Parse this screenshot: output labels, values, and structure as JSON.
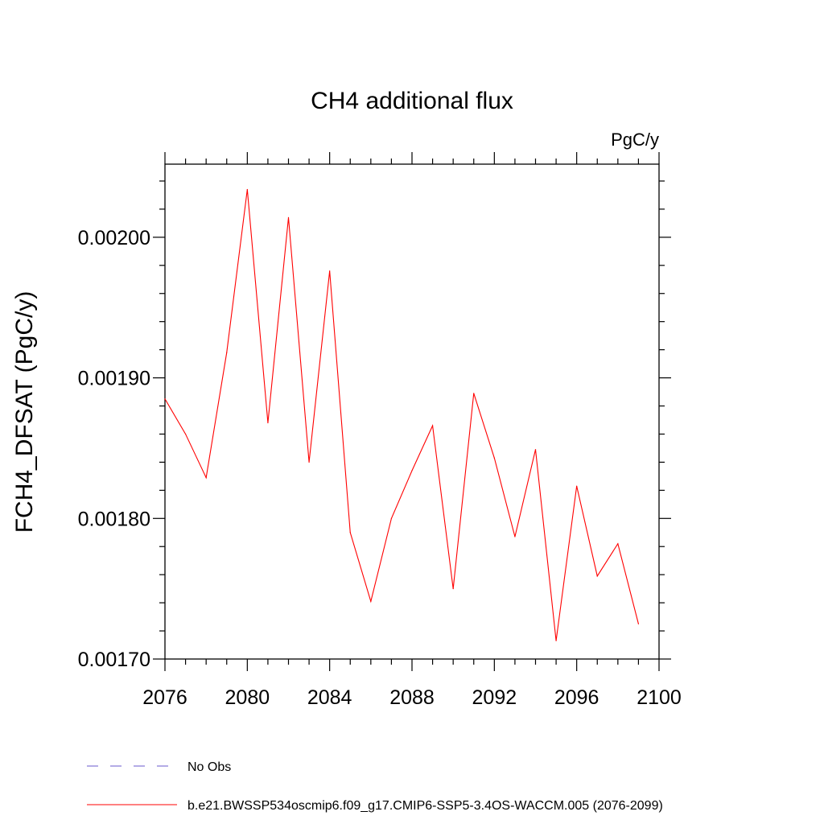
{
  "chart_data": {
    "type": "line",
    "title": "CH4 additional flux",
    "units_label": "PgC/y",
    "ylabel": "FCH4_DFSAT  (PgC/y)",
    "xlabel": "",
    "xlim": [
      2076,
      2100
    ],
    "ylim": [
      0.0017,
      0.002052
    ],
    "x_ticks": [
      "2076",
      "2080",
      "2084",
      "2088",
      "2092",
      "2096",
      "2100"
    ],
    "y_ticks": [
      "0.00170",
      "0.00180",
      "0.00190",
      "0.00200"
    ],
    "grid": false,
    "legend_position": "bottom-left",
    "series": [
      {
        "name": "b.e21.BWSSP534oscmip6.f09_g17.CMIP6-SSP5-3.4OS-WACCM.005 (2076-2099)",
        "color": "#ff0000",
        "x": [
          2076,
          2077,
          2078,
          2079,
          2080,
          2081,
          2082,
          2083,
          2084,
          2085,
          2086,
          2087,
          2088,
          2089,
          2090,
          2091,
          2092,
          2093,
          2094,
          2095,
          2096,
          2097,
          2098,
          2099
        ],
        "y": [
          0.001885,
          0.00186,
          0.001829,
          0.001918,
          0.002034,
          0.001868,
          0.002014,
          0.00184,
          0.001976,
          0.00179,
          0.001741,
          0.0018,
          0.001834,
          0.001866,
          0.00175,
          0.001889,
          0.001843,
          0.001787,
          0.001849,
          0.001713,
          0.001823,
          0.001759,
          0.001782,
          0.001725
        ]
      }
    ],
    "legend": [
      {
        "label": "No Obs",
        "color": "#6a5acd",
        "dashed": true
      },
      {
        "label": "b.e21.BWSSP534oscmip6.f09_g17.CMIP6-SSP5-3.4OS-WACCM.005 (2076-2099)",
        "color": "#ff0000",
        "dashed": false
      }
    ]
  }
}
